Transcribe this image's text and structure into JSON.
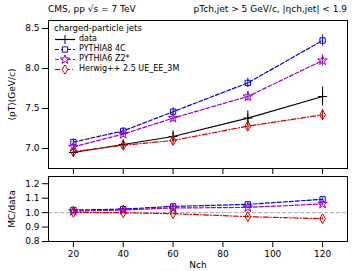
{
  "chart_data": [
    {
      "type": "line",
      "title": "CMS, pp √s = 7 TeV",
      "subtitle": "pTch,jet > 5 GeV/c, |ηch,jet| < 1.9",
      "annotations": [
        "charged-particle jets"
      ],
      "ylabel": "⟨pT⟩(GeV/c)",
      "x": [
        20,
        40,
        60,
        90,
        120
      ],
      "xlim": [
        10,
        130
      ],
      "xticks": [
        20,
        40,
        60,
        80,
        100,
        120
      ],
      "ylim": [
        6.75,
        8.6
      ],
      "yticks": [
        {
          "value": 7.0,
          "label": "7.0"
        },
        7.5,
        {
          "value": 8.0,
          "label": "8.0"
        },
        8.5
      ],
      "tick_labels": "y",
      "legend": "upper left",
      "series": [
        {
          "name": "data",
          "color": "#000000",
          "marker": "plus",
          "line_style": "solid",
          "values": [
            6.95,
            7.05,
            7.15,
            7.38,
            7.65
          ],
          "errors": [
            0.06,
            0.06,
            0.07,
            0.09,
            0.12
          ]
        },
        {
          "name": "PYTHIA8 4C",
          "color": "#0000dd",
          "marker": "square",
          "line_style": "dashed",
          "values": [
            7.08,
            7.22,
            7.46,
            7.82,
            8.35
          ],
          "errors": [
            0.04,
            0.04,
            0.05,
            0.06,
            0.07
          ]
        },
        {
          "name": "PYTHIA6 Z2*",
          "color": "#9900cc",
          "marker": "star",
          "line_style": "dashed",
          "values": [
            7.02,
            7.18,
            7.38,
            7.65,
            8.1
          ],
          "errors": [
            0.04,
            0.04,
            0.05,
            0.06,
            0.07
          ]
        },
        {
          "name": "Herwig++ 2.5  UE_EE_3M",
          "color": "#cc0000",
          "marker": "diamond",
          "line_style": "dashdot",
          "values": [
            6.96,
            7.04,
            7.1,
            7.28,
            7.42
          ],
          "errors": [
            0.04,
            0.04,
            0.05,
            0.06,
            0.07
          ]
        }
      ]
    },
    {
      "type": "line",
      "xlabel": "Nch",
      "ylabel": "MC/data",
      "x": [
        20,
        40,
        60,
        90,
        120
      ],
      "xlim": [
        10,
        130
      ],
      "xticks": [
        20,
        40,
        60,
        80,
        100,
        120
      ],
      "ylim": [
        0.8,
        1.25
      ],
      "yticks": [
        0.8,
        0.9,
        {
          "value": 1.0,
          "label": "1.0"
        },
        1.1,
        1.2
      ],
      "reference_line": {
        "y": 1.0,
        "color": "#aaaaaa",
        "line_style": "dashed"
      },
      "series": [
        {
          "color": "#0000dd",
          "marker": "square",
          "line_style": "dashed",
          "values": [
            1.018,
            1.024,
            1.043,
            1.057,
            1.092
          ],
          "errors": [
            0.006,
            0.006,
            0.007,
            0.008,
            0.009
          ]
        },
        {
          "color": "#9900cc",
          "marker": "star",
          "line_style": "dashed",
          "values": [
            1.01,
            1.018,
            1.032,
            1.036,
            1.06
          ],
          "errors": [
            0.006,
            0.006,
            0.007,
            0.008,
            0.009
          ]
        },
        {
          "color": "#cc0000",
          "marker": "diamond",
          "line_style": "dashdot",
          "values": [
            1.002,
            0.999,
            0.993,
            0.972,
            0.958
          ],
          "errors": [
            0.006,
            0.006,
            0.007,
            0.008,
            0.009
          ]
        }
      ]
    }
  ]
}
